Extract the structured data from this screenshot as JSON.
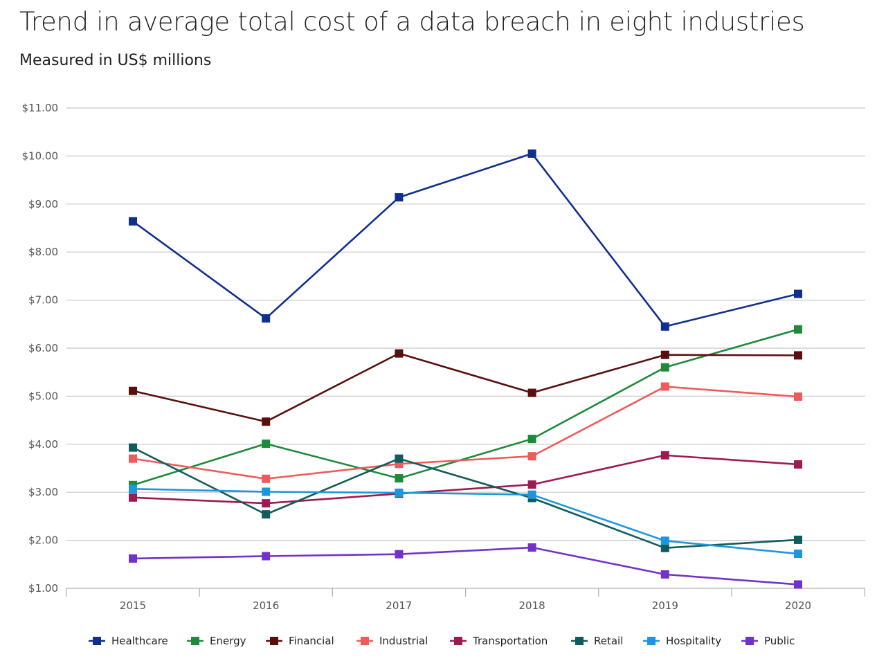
{
  "chart_data": {
    "type": "line",
    "title": "Trend in average total cost of a data breach in eight industries",
    "subtitle": "Measured in US$ millions",
    "xlabel": "",
    "ylabel": "",
    "x": [
      "2015",
      "2016",
      "2017",
      "2018",
      "2019",
      "2020"
    ],
    "ylim": [
      1,
      11
    ],
    "yticks": [
      1,
      2,
      3,
      4,
      5,
      6,
      7,
      8,
      9,
      10,
      11
    ],
    "ytick_labels": [
      "$1.00",
      "$2.00",
      "$3.00",
      "$4.00",
      "$5.00",
      "$6.00",
      "$7.00",
      "$8.00",
      "$9.00",
      "$10.00",
      "$11.00"
    ],
    "grid": "horizontal",
    "legend_position": "bottom",
    "series": [
      {
        "name": "Healthcare",
        "color": "#0f2f8f",
        "values": [
          8.64,
          6.62,
          9.14,
          10.05,
          6.45,
          7.13
        ]
      },
      {
        "name": "Energy",
        "color": "#1e8a3c",
        "values": [
          3.15,
          4.01,
          3.29,
          4.11,
          5.6,
          6.39
        ]
      },
      {
        "name": "Financial",
        "color": "#5a0f0f",
        "values": [
          5.11,
          4.47,
          5.89,
          5.07,
          5.86,
          5.85
        ]
      },
      {
        "name": "Industrial",
        "color": "#ef5a5a",
        "values": [
          3.7,
          3.28,
          3.59,
          3.75,
          5.2,
          4.99
        ]
      },
      {
        "name": "Transportation",
        "color": "#9b1b52",
        "values": [
          2.89,
          2.77,
          2.97,
          3.16,
          3.77,
          3.58
        ]
      },
      {
        "name": "Retail",
        "color": "#0f5c5c",
        "values": [
          3.93,
          2.54,
          3.7,
          2.88,
          1.84,
          2.01
        ]
      },
      {
        "name": "Hospitality",
        "color": "#1e96dd",
        "values": [
          3.07,
          3.01,
          2.99,
          2.95,
          1.99,
          1.72
        ]
      },
      {
        "name": "Public",
        "color": "#7232c8",
        "values": [
          1.62,
          1.67,
          1.71,
          1.85,
          1.29,
          1.08
        ]
      }
    ]
  }
}
